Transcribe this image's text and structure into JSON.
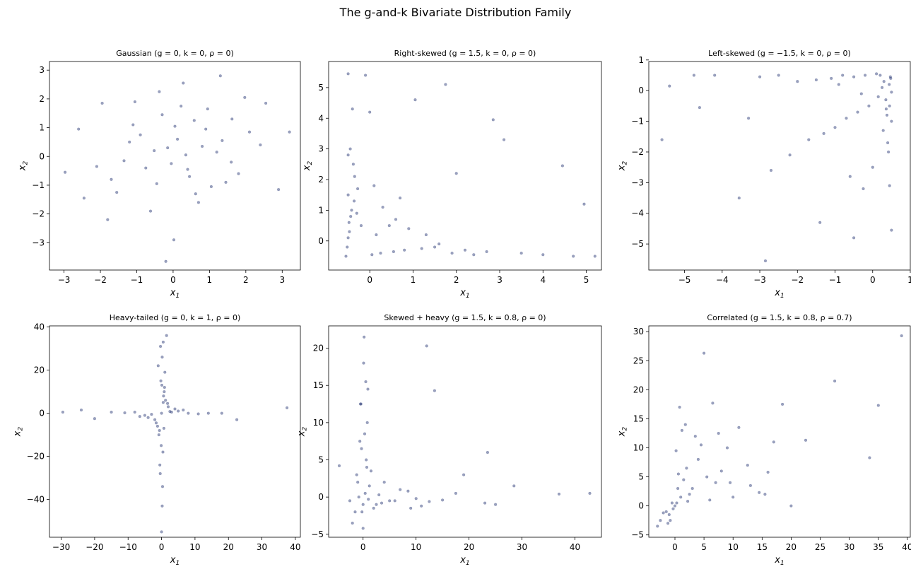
{
  "figure": {
    "title": "The g-and-k Bivariate Distribution Family"
  },
  "style": {
    "marker_color": "#1f2f6e",
    "marker_opacity": 0.45
  },
  "chart_data": [
    {
      "type": "scatter",
      "title": "Gaussian  (g = 0, k = 0, ρ = 0)",
      "xlabel": "x1",
      "ylabel": "x2",
      "xlim": [
        -3.4,
        3.5
      ],
      "ylim": [
        -3.95,
        3.3
      ],
      "xticks": [
        -3,
        -2,
        -1,
        0,
        1,
        2,
        3
      ],
      "yticks": [
        -3,
        -2,
        -1,
        0,
        1,
        2,
        3
      ],
      "x": [
        -2.97,
        3.2,
        -0.38,
        1.3,
        1.97,
        -0.2,
        -2.6,
        2.55,
        2.9,
        0.28,
        -1.8,
        2.4,
        0.02,
        1.62,
        -2.45,
        -1.95,
        -0.52,
        0.45,
        -1.1,
        0.8,
        1.05,
        -1.35,
        -0.75,
        0.12,
        0.58,
        1.45,
        -0.05,
        -0.9,
        0.35,
        1.8,
        -1.55,
        0.95,
        -0.3,
        0.7,
        -2.1,
        2.1,
        0.05,
        -0.62,
        1.2,
        -1.2,
        0.4,
        -0.15,
        0.9,
        -1.7,
        1.6,
        -0.45,
        0.22,
        0.62,
        -1.05,
        1.35
      ],
      "y": [
        -0.55,
        0.85,
        2.25,
        2.8,
        2.05,
        -3.65,
        0.95,
        1.85,
        -1.15,
        2.55,
        -2.2,
        0.4,
        -2.9,
        1.3,
        -1.45,
        1.85,
        0.2,
        -0.7,
        1.1,
        0.35,
        -1.05,
        -0.15,
        -0.4,
        0.6,
        1.25,
        -0.9,
        -0.25,
        0.75,
        0.05,
        -0.6,
        -1.25,
        1.65,
        1.45,
        -1.6,
        -0.35,
        0.85,
        1.05,
        -1.9,
        0.15,
        0.5,
        -0.45,
        0.3,
        0.95,
        -0.8,
        -0.2,
        -0.95,
        1.75,
        -1.3,
        1.9,
        0.55
      ]
    },
    {
      "type": "scatter",
      "title": "Right-skewed  (g = 1.5, k = 0, ρ = 0)",
      "xlabel": "x1",
      "ylabel": "x2",
      "xlim": [
        -0.95,
        5.35
      ],
      "ylim": [
        -0.95,
        5.85
      ],
      "xticks": [
        0,
        1,
        2,
        3,
        4,
        5
      ],
      "yticks": [
        0,
        1,
        2,
        3,
        4,
        5
      ],
      "x": [
        -0.5,
        -0.1,
        1.75,
        1.05,
        2.85,
        4.45,
        4.95,
        5.2,
        -0.45,
        -0.4,
        -0.35,
        -0.5,
        -0.3,
        -0.2,
        0.1,
        0.3,
        0.6,
        0.9,
        1.3,
        1.6,
        2.2,
        2.7,
        3.5,
        4.0,
        4.7,
        -0.55,
        -0.5,
        -0.48,
        -0.42,
        -0.38,
        0.05,
        0.25,
        0.55,
        0.8,
        1.2,
        1.5,
        1.9,
        2.4,
        -0.52,
        -0.47,
        -0.44,
        -0.36,
        -0.28,
        0.15,
        0.45,
        0.7,
        -0.5,
        0.0,
        3.1,
        2.0
      ],
      "y": [
        5.45,
        5.4,
        5.1,
        4.6,
        3.95,
        2.45,
        1.2,
        -0.5,
        3.0,
        4.3,
        2.1,
        1.5,
        0.9,
        0.5,
        1.8,
        1.1,
        0.7,
        0.4,
        0.2,
        -0.1,
        -0.3,
        -0.35,
        -0.4,
        -0.45,
        -0.5,
        -0.5,
        0.1,
        0.6,
        1.0,
        2.5,
        -0.45,
        -0.4,
        -0.35,
        -0.3,
        -0.25,
        -0.2,
        -0.4,
        -0.45,
        -0.2,
        0.3,
        0.8,
        1.3,
        1.7,
        0.2,
        0.5,
        1.4,
        2.8,
        4.2,
        3.3,
        2.2
      ]
    },
    {
      "type": "scatter",
      "title": "Left-skewed  (g = −1.5, k = 0, ρ = 0)",
      "xlabel": "x1",
      "ylabel": "x2",
      "xlim": [
        -5.95,
        1.0
      ],
      "ylim": [
        -5.85,
        0.95
      ],
      "xticks": [
        -5,
        -4,
        -3,
        -2,
        -1,
        0,
        1
      ],
      "yticks": [
        -5,
        -4,
        -3,
        -2,
        -1,
        0,
        1
      ],
      "x": [
        -5.6,
        -5.4,
        -4.75,
        -4.2,
        -3.55,
        -2.85,
        -1.4,
        -0.5,
        0.5,
        0.45,
        0.4,
        0.3,
        0.2,
        0.1,
        -0.2,
        -0.5,
        -0.8,
        -1.1,
        -1.5,
        -2.0,
        -2.5,
        -3.0,
        -0.9,
        -0.3,
        0.45,
        0.5,
        0.42,
        0.35,
        0.25,
        0.48,
        0.38,
        0.15,
        -0.1,
        -0.4,
        -0.7,
        -1.0,
        -1.3,
        -1.7,
        -2.2,
        0.5,
        0.47,
        0.44,
        0.36,
        0.28,
        0.0,
        -0.25,
        -0.6,
        -2.7,
        -3.3,
        -4.6
      ],
      "y": [
        -1.6,
        0.15,
        0.5,
        0.5,
        -3.5,
        -5.55,
        -4.3,
        -4.8,
        -4.55,
        -3.1,
        -1.7,
        0.3,
        0.5,
        0.55,
        0.5,
        0.45,
        0.5,
        0.4,
        0.35,
        0.3,
        0.5,
        0.45,
        0.2,
        -0.1,
        -0.5,
        -1.0,
        -2.0,
        -0.3,
        0.1,
        0.4,
        -0.8,
        -0.2,
        -0.5,
        -0.7,
        -0.9,
        -1.2,
        -1.4,
        -1.6,
        -2.1,
        -0.05,
        0.45,
        0.2,
        -0.6,
        -1.3,
        -2.5,
        -3.2,
        -2.8,
        -2.6,
        -0.9,
        -0.55
      ]
    },
    {
      "type": "scatter",
      "title": "Heavy-tailed  (g = 0, k = 1, ρ = 0)",
      "xlabel": "x1",
      "ylabel": "x2",
      "xlim": [
        -33.5,
        41.5
      ],
      "ylim": [
        -57.5,
        40.5
      ],
      "xticks": [
        -30,
        -20,
        -10,
        0,
        10,
        20,
        30,
        40
      ],
      "yticks": [
        -40,
        -20,
        0,
        20,
        40
      ],
      "x": [
        -29.5,
        -24.0,
        -20.0,
        -15.0,
        37.5,
        22.5,
        18.0,
        1.5,
        0.5,
        -0.3,
        0.2,
        0.0,
        -0.5,
        0.3,
        -1.0,
        1.0,
        0.4,
        -0.2,
        3.0,
        -3.0,
        5.0,
        -5.0,
        8.0,
        -8.0,
        11.0,
        -11.0,
        14.0,
        0.8,
        -0.8,
        1.2,
        -1.2,
        2.0,
        -2.0,
        0.0,
        0.6,
        -0.6,
        4.0,
        -4.0,
        6.5,
        -6.5,
        0.2,
        -0.4,
        0.9,
        1.8,
        -1.6,
        2.5,
        0.1,
        -0.1,
        0.5,
        0.7
      ],
      "y": [
        0.5,
        1.5,
        -2.5,
        0.5,
        2.5,
        -3.0,
        0.0,
        36.0,
        33.0,
        31.0,
        -43.0,
        -55.0,
        -24.0,
        -34.0,
        22.0,
        19.0,
        -18.0,
        15.0,
        0.5,
        -0.5,
        1.0,
        -1.0,
        0.0,
        0.5,
        -0.3,
        0.2,
        0.0,
        10.0,
        -10.0,
        6.0,
        -6.0,
        3.0,
        -3.0,
        0.0,
        8.0,
        -8.0,
        2.0,
        -2.0,
        1.5,
        -1.5,
        26.0,
        -28.0,
        12.0,
        4.5,
        -4.5,
        0.8,
        13.0,
        -15.0,
        5.0,
        -7.0
      ]
    },
    {
      "type": "scatter",
      "title": "Skewed + heavy  (g = 1.5, k = 0.8, ρ = 0)",
      "xlabel": "x1",
      "ylabel": "x2",
      "xlim": [
        -6.5,
        45.0
      ],
      "ylim": [
        -5.4,
        23.0
      ],
      "xticks": [
        0,
        10,
        20,
        30,
        40
      ],
      "yticks": [
        -5,
        0,
        5,
        10,
        15,
        20
      ],
      "x": [
        -4.5,
        0.2,
        12.0,
        13.5,
        0.5,
        -0.5,
        0.8,
        42.8,
        37.0,
        28.5,
        25.0,
        23.0,
        23.5,
        19.0,
        17.5,
        9.0,
        8.5,
        6.0,
        4.0,
        2.5,
        1.5,
        0.3,
        -0.3,
        -1.0,
        -1.5,
        -2.0,
        -2.5,
        0.0,
        0.4,
        -0.2,
        0.6,
        1.0,
        -0.8,
        3.0,
        5.0,
        7.0,
        10.0,
        12.5,
        15.0,
        0.1,
        -0.4,
        0.7,
        1.2,
        -1.2,
        2.0,
        -0.6,
        0.9,
        3.5,
        11.0,
        0.0
      ],
      "y": [
        4.2,
        21.5,
        20.3,
        14.3,
        15.5,
        12.5,
        10.0,
        0.5,
        0.4,
        1.5,
        -1.0,
        -0.8,
        6.0,
        3.0,
        0.5,
        -1.5,
        0.8,
        -0.5,
        2.0,
        -1.0,
        3.5,
        8.5,
        6.5,
        2.0,
        -2.0,
        -3.5,
        -0.5,
        -1.0,
        0.5,
        -2.0,
        5.0,
        -0.3,
        0.0,
        0.3,
        -0.5,
        1.0,
        -0.2,
        -0.6,
        -0.4,
        18.0,
        12.5,
        4.0,
        1.5,
        3.0,
        -1.5,
        7.5,
        14.5,
        -0.8,
        -1.2,
        -4.2
      ]
    },
    {
      "type": "scatter",
      "title": "Correlated  (g = 1.5, k = 0.8, ρ = 0.7)",
      "xlabel": "x1",
      "ylabel": "x2",
      "xlim": [
        -4.5,
        40.5
      ],
      "ylim": [
        -5.4,
        31.0
      ],
      "xticks": [
        0,
        5,
        10,
        15,
        20,
        25,
        30,
        35,
        40
      ],
      "yticks": [
        -5,
        0,
        5,
        10,
        15,
        20,
        25,
        30
      ],
      "x": [
        39.0,
        27.5,
        5.0,
        6.5,
        18.5,
        35.0,
        33.5,
        22.5,
        20.0,
        16.0,
        14.5,
        11.0,
        9.0,
        7.0,
        3.5,
        2.0,
        0.5,
        -0.5,
        -1.5,
        -2.5,
        -3.0,
        0.0,
        1.0,
        -1.0,
        0.3,
        -0.3,
        1.5,
        2.5,
        4.0,
        5.5,
        8.0,
        10.0,
        12.5,
        15.5,
        0.8,
        -0.8,
        0.2,
        1.2,
        3.0,
        4.5,
        6.0,
        7.5,
        -2.0,
        2.2,
        9.5,
        13.0,
        0.6,
        -1.2,
        1.8,
        17.0
      ],
      "y": [
        29.3,
        21.5,
        26.3,
        17.7,
        17.5,
        17.3,
        8.3,
        11.3,
        0.0,
        5.8,
        2.3,
        13.5,
        10.0,
        4.0,
        12.0,
        6.5,
        3.0,
        0.5,
        -1.0,
        -2.5,
        -3.5,
        0.0,
        1.5,
        -1.5,
        0.5,
        -0.5,
        4.5,
        2.0,
        8.0,
        5.0,
        6.0,
        1.5,
        7.0,
        2.0,
        17.0,
        -2.5,
        9.5,
        13.0,
        3.0,
        10.5,
        1.0,
        12.5,
        -1.2,
        0.8,
        4.0,
        3.5,
        5.5,
        -3.0,
        14.0,
        11.0
      ]
    }
  ]
}
